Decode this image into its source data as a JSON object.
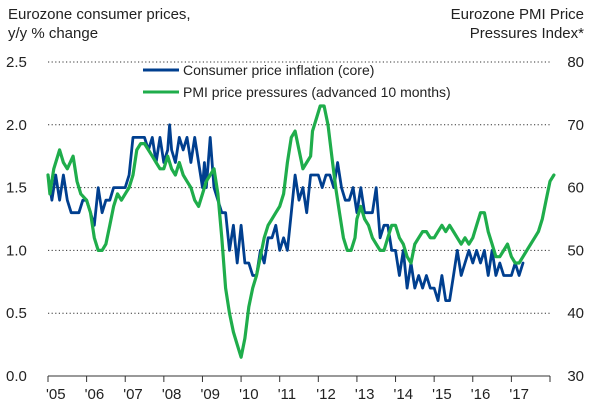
{
  "chart_data": {
    "type": "line",
    "left_axis": {
      "title_line1": "Eurozone consumer prices,",
      "title_line2": "y/y % change",
      "ylim": [
        0.0,
        2.5
      ],
      "ticks": [
        "0.0",
        "0.5",
        "1.0",
        "1.5",
        "2.0",
        "2.5"
      ]
    },
    "right_axis": {
      "title_line1": "Eurozone PMI Price",
      "title_line2": "Pressures Index*",
      "ylim": [
        30,
        80
      ],
      "ticks": [
        "30",
        "40",
        "50",
        "60",
        "70",
        "80"
      ]
    },
    "x_ticks": [
      "'05",
      "'06",
      "'07",
      "'08",
      "'09",
      "'10",
      "'11",
      "'12",
      "'13",
      "'14",
      "'15",
      "'16",
      "'17"
    ],
    "xlim": [
      2005.0,
      2018.0
    ],
    "grid": "horizontal-dotted",
    "legend_position": "top-center",
    "series": [
      {
        "name": "Consumer price inflation (core)",
        "axis": "left",
        "color": "#003f8f",
        "points": [
          [
            2005.0,
            1.6
          ],
          [
            2005.1,
            1.4
          ],
          [
            2005.2,
            1.6
          ],
          [
            2005.3,
            1.4
          ],
          [
            2005.4,
            1.6
          ],
          [
            2005.5,
            1.4
          ],
          [
            2005.6,
            1.3
          ],
          [
            2005.8,
            1.3
          ],
          [
            2005.9,
            1.4
          ],
          [
            2006.0,
            1.4
          ],
          [
            2006.1,
            1.3
          ],
          [
            2006.2,
            1.2
          ],
          [
            2006.3,
            1.5
          ],
          [
            2006.4,
            1.3
          ],
          [
            2006.5,
            1.4
          ],
          [
            2006.6,
            1.4
          ],
          [
            2006.7,
            1.5
          ],
          [
            2006.9,
            1.5
          ],
          [
            2007.0,
            1.5
          ],
          [
            2007.1,
            1.6
          ],
          [
            2007.2,
            1.9
          ],
          [
            2007.4,
            1.9
          ],
          [
            2007.5,
            1.9
          ],
          [
            2007.6,
            1.8
          ],
          [
            2007.7,
            1.9
          ],
          [
            2007.8,
            1.7
          ],
          [
            2007.9,
            1.9
          ],
          [
            2008.0,
            1.7
          ],
          [
            2008.1,
            1.8
          ],
          [
            2008.15,
            2.0
          ],
          [
            2008.2,
            1.8
          ],
          [
            2008.3,
            1.7
          ],
          [
            2008.4,
            1.9
          ],
          [
            2008.5,
            1.8
          ],
          [
            2008.6,
            1.9
          ],
          [
            2008.7,
            1.7
          ],
          [
            2008.8,
            1.9
          ],
          [
            2008.9,
            1.7
          ],
          [
            2009.0,
            1.5
          ],
          [
            2009.05,
            1.7
          ],
          [
            2009.1,
            1.5
          ],
          [
            2009.2,
            1.9
          ],
          [
            2009.3,
            1.5
          ],
          [
            2009.4,
            1.4
          ],
          [
            2009.5,
            1.3
          ],
          [
            2009.6,
            1.3
          ],
          [
            2009.7,
            1.0
          ],
          [
            2009.8,
            1.2
          ],
          [
            2009.9,
            0.9
          ],
          [
            2010.0,
            1.2
          ],
          [
            2010.1,
            0.9
          ],
          [
            2010.2,
            0.9
          ],
          [
            2010.3,
            0.8
          ],
          [
            2010.4,
            0.8
          ],
          [
            2010.5,
            1.0
          ],
          [
            2010.6,
            0.9
          ],
          [
            2010.7,
            1.1
          ],
          [
            2010.8,
            1.1
          ],
          [
            2010.9,
            1.2
          ],
          [
            2011.0,
            1.0
          ],
          [
            2011.1,
            1.1
          ],
          [
            2011.2,
            1.0
          ],
          [
            2011.3,
            1.3
          ],
          [
            2011.4,
            1.6
          ],
          [
            2011.5,
            1.4
          ],
          [
            2011.6,
            1.5
          ],
          [
            2011.7,
            1.3
          ],
          [
            2011.8,
            1.6
          ],
          [
            2012.0,
            1.6
          ],
          [
            2012.1,
            1.5
          ],
          [
            2012.2,
            1.6
          ],
          [
            2012.3,
            1.6
          ],
          [
            2012.4,
            1.5
          ],
          [
            2012.5,
            1.7
          ],
          [
            2012.6,
            1.5
          ],
          [
            2012.7,
            1.4
          ],
          [
            2012.8,
            1.4
          ],
          [
            2012.9,
            1.5
          ],
          [
            2013.0,
            1.3
          ],
          [
            2013.1,
            1.5
          ],
          [
            2013.2,
            1.3
          ],
          [
            2013.3,
            1.3
          ],
          [
            2013.4,
            1.3
          ],
          [
            2013.5,
            1.5
          ],
          [
            2013.6,
            1.1
          ],
          [
            2013.7,
            1.2
          ],
          [
            2013.8,
            1.2
          ],
          [
            2013.9,
            1.0
          ],
          [
            2014.0,
            1.0
          ],
          [
            2014.1,
            0.8
          ],
          [
            2014.2,
            1.0
          ],
          [
            2014.3,
            0.7
          ],
          [
            2014.4,
            0.9
          ],
          [
            2014.5,
            0.7
          ],
          [
            2014.6,
            0.8
          ],
          [
            2014.7,
            0.7
          ],
          [
            2014.8,
            0.8
          ],
          [
            2014.9,
            0.7
          ],
          [
            2015.0,
            0.7
          ],
          [
            2015.1,
            0.6
          ],
          [
            2015.2,
            0.8
          ],
          [
            2015.3,
            0.6
          ],
          [
            2015.4,
            0.6
          ],
          [
            2015.5,
            0.8
          ],
          [
            2015.6,
            1.0
          ],
          [
            2015.7,
            0.8
          ],
          [
            2015.8,
            0.9
          ],
          [
            2015.9,
            1.0
          ],
          [
            2016.0,
            0.9
          ],
          [
            2016.1,
            1.0
          ],
          [
            2016.2,
            0.9
          ],
          [
            2016.3,
            1.0
          ],
          [
            2016.4,
            0.8
          ],
          [
            2016.5,
            1.0
          ],
          [
            2016.6,
            0.8
          ],
          [
            2016.7,
            0.9
          ],
          [
            2016.8,
            0.8
          ],
          [
            2017.0,
            0.8
          ],
          [
            2017.1,
            0.9
          ],
          [
            2017.2,
            0.8
          ],
          [
            2017.3,
            0.9
          ]
        ]
      },
      {
        "name": "PMI price pressures (advanced 10 months)",
        "axis": "right",
        "color": "#1fad4b",
        "points": [
          [
            2005.0,
            62
          ],
          [
            2005.05,
            59
          ],
          [
            2005.15,
            63
          ],
          [
            2005.3,
            66
          ],
          [
            2005.4,
            64
          ],
          [
            2005.5,
            63
          ],
          [
            2005.65,
            65
          ],
          [
            2005.75,
            61
          ],
          [
            2005.85,
            59
          ],
          [
            2006.0,
            58
          ],
          [
            2006.1,
            56
          ],
          [
            2006.2,
            52
          ],
          [
            2006.3,
            50
          ],
          [
            2006.4,
            50
          ],
          [
            2006.5,
            51
          ],
          [
            2006.6,
            54
          ],
          [
            2006.7,
            57
          ],
          [
            2006.8,
            59
          ],
          [
            2006.9,
            58
          ],
          [
            2007.0,
            59
          ],
          [
            2007.1,
            60
          ],
          [
            2007.2,
            62
          ],
          [
            2007.3,
            66
          ],
          [
            2007.4,
            67
          ],
          [
            2007.5,
            67
          ],
          [
            2007.6,
            66
          ],
          [
            2007.7,
            65
          ],
          [
            2007.8,
            64
          ],
          [
            2007.9,
            63
          ],
          [
            2008.0,
            63
          ],
          [
            2008.1,
            65
          ],
          [
            2008.2,
            63
          ],
          [
            2008.3,
            62
          ],
          [
            2008.4,
            64
          ],
          [
            2008.5,
            62
          ],
          [
            2008.6,
            61
          ],
          [
            2008.7,
            60
          ],
          [
            2008.8,
            58
          ],
          [
            2008.9,
            57
          ],
          [
            2009.0,
            59
          ],
          [
            2009.1,
            61
          ],
          [
            2009.2,
            62
          ],
          [
            2009.3,
            63
          ],
          [
            2009.4,
            59
          ],
          [
            2009.5,
            52
          ],
          [
            2009.6,
            44
          ],
          [
            2009.7,
            40
          ],
          [
            2009.8,
            37
          ],
          [
            2009.9,
            35
          ],
          [
            2010.0,
            33
          ],
          [
            2010.1,
            36
          ],
          [
            2010.2,
            41
          ],
          [
            2010.3,
            44
          ],
          [
            2010.4,
            46
          ],
          [
            2010.5,
            49
          ],
          [
            2010.6,
            52
          ],
          [
            2010.7,
            54
          ],
          [
            2010.8,
            55
          ],
          [
            2010.9,
            56
          ],
          [
            2011.0,
            57
          ],
          [
            2011.1,
            59
          ],
          [
            2011.2,
            64
          ],
          [
            2011.3,
            68
          ],
          [
            2011.4,
            69
          ],
          [
            2011.5,
            66
          ],
          [
            2011.6,
            63
          ],
          [
            2011.7,
            64
          ],
          [
            2011.8,
            65
          ],
          [
            2011.85,
            69
          ],
          [
            2011.95,
            71
          ],
          [
            2012.05,
            73
          ],
          [
            2012.15,
            73
          ],
          [
            2012.25,
            70
          ],
          [
            2012.35,
            65
          ],
          [
            2012.45,
            60
          ],
          [
            2012.55,
            56
          ],
          [
            2012.65,
            52
          ],
          [
            2012.75,
            50
          ],
          [
            2012.85,
            50
          ],
          [
            2012.95,
            52
          ],
          [
            2013.0,
            55
          ],
          [
            2013.1,
            57
          ],
          [
            2013.2,
            55
          ],
          [
            2013.3,
            54
          ],
          [
            2013.4,
            52
          ],
          [
            2013.5,
            51
          ],
          [
            2013.6,
            50
          ],
          [
            2013.7,
            50
          ],
          [
            2013.8,
            52
          ],
          [
            2013.9,
            54
          ],
          [
            2014.0,
            54
          ],
          [
            2014.1,
            52
          ],
          [
            2014.2,
            51
          ],
          [
            2014.3,
            49
          ],
          [
            2014.4,
            48
          ],
          [
            2014.5,
            51
          ],
          [
            2014.6,
            52
          ],
          [
            2014.7,
            53
          ],
          [
            2014.8,
            53
          ],
          [
            2014.9,
            52
          ],
          [
            2015.0,
            52
          ],
          [
            2015.1,
            53
          ],
          [
            2015.2,
            54
          ],
          [
            2015.3,
            53
          ],
          [
            2015.4,
            54
          ],
          [
            2015.5,
            53
          ],
          [
            2015.6,
            52
          ],
          [
            2015.7,
            51
          ],
          [
            2015.8,
            52
          ],
          [
            2015.9,
            51
          ],
          [
            2016.0,
            52
          ],
          [
            2016.1,
            54
          ],
          [
            2016.2,
            56
          ],
          [
            2016.3,
            56
          ],
          [
            2016.4,
            53
          ],
          [
            2016.5,
            51
          ],
          [
            2016.6,
            49
          ],
          [
            2016.7,
            49
          ],
          [
            2016.8,
            50
          ],
          [
            2016.9,
            51
          ],
          [
            2017.0,
            49
          ],
          [
            2017.1,
            48
          ],
          [
            2017.2,
            48
          ],
          [
            2017.3,
            49
          ],
          [
            2017.4,
            50
          ],
          [
            2017.5,
            51
          ],
          [
            2017.6,
            52
          ],
          [
            2017.7,
            53
          ],
          [
            2017.8,
            55
          ],
          [
            2017.9,
            58
          ],
          [
            2018.0,
            61
          ],
          [
            2018.1,
            62
          ]
        ]
      }
    ]
  }
}
